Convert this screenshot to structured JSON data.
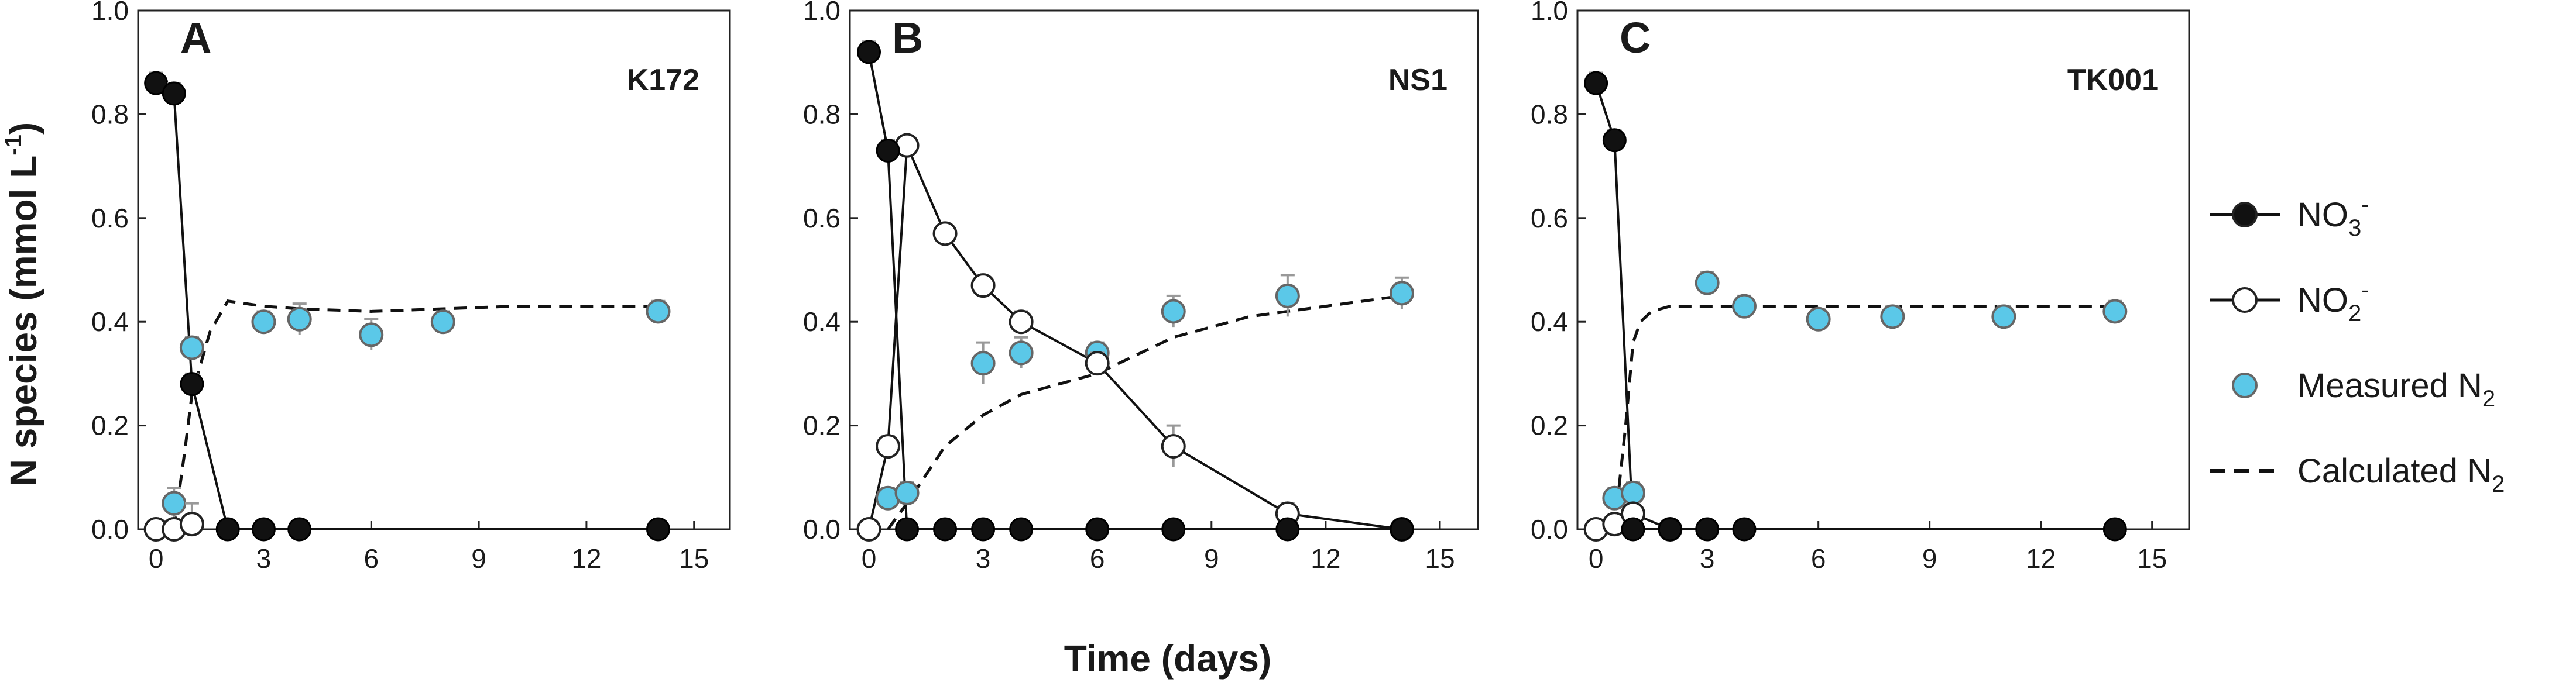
{
  "chart_data": {
    "type": "scatter",
    "y_axis_label": "N species (mmol L",
    "y_axis_label_sup": "-1",
    "y_axis_label_end": ")",
    "x_axis_label": "Time (days)",
    "xlim": [
      -0.5,
      16
    ],
    "ylim": [
      0,
      1.0
    ],
    "x_ticks": [
      0,
      3,
      6,
      9,
      12,
      15
    ],
    "y_ticks": [
      0.0,
      0.2,
      0.4,
      0.6,
      0.8,
      1.0
    ],
    "y_tick_labels": [
      "0.0",
      "0.2",
      "0.4",
      "0.6",
      "0.8",
      "1.0"
    ],
    "legend": {
      "position": "right",
      "items": [
        {
          "key": "no3",
          "label": "NO",
          "sub": "3",
          "sup": "-"
        },
        {
          "key": "no2",
          "label": "NO",
          "sub": "2",
          "sup": "-"
        },
        {
          "key": "measured_n2",
          "label": "Measured N",
          "sub": "2",
          "sup": ""
        },
        {
          "key": "calculated_n2",
          "label": "Calculated N",
          "sub": "2",
          "sup": ""
        }
      ]
    },
    "colors": {
      "no3": "#111111",
      "no2": "#ffffff",
      "measured_n2": "#5bc8e8",
      "errorbar": "#999999",
      "line": "#111111"
    },
    "panels": [
      {
        "letter": "A",
        "name": "K172",
        "no3": {
          "x": [
            0,
            0.5,
            1,
            2,
            3,
            4,
            14
          ],
          "y": [
            0.86,
            0.84,
            0.28,
            0.0,
            0.0,
            0.0,
            0.0
          ],
          "err": [
            0.02,
            0.02,
            0.02,
            0.01,
            0.01,
            0.01,
            0.01
          ]
        },
        "no2": {
          "x": [
            0,
            0.5,
            1
          ],
          "y": [
            0.0,
            0.0,
            0.01
          ],
          "err": [
            0.01,
            0.01,
            0.04
          ]
        },
        "measured_n2": {
          "x": [
            0.5,
            1,
            3,
            4,
            6,
            8,
            14
          ],
          "y": [
            0.05,
            0.35,
            0.4,
            0.405,
            0.375,
            0.4,
            0.42
          ],
          "err": [
            0.03,
            0.02,
            0.02,
            0.03,
            0.03,
            0.02,
            0.02
          ]
        },
        "calculated_n2": {
          "x": [
            0.5,
            0.8,
            1,
            1.5,
            2,
            3,
            4,
            6,
            8,
            10,
            14
          ],
          "y": [
            0.0,
            0.15,
            0.26,
            0.38,
            0.44,
            0.43,
            0.425,
            0.42,
            0.425,
            0.43,
            0.43
          ]
        }
      },
      {
        "letter": "B",
        "name": "NS1",
        "no3": {
          "x": [
            0,
            0.5,
            1,
            2,
            3,
            4,
            6,
            8,
            11,
            14
          ],
          "y": [
            0.92,
            0.73,
            0.0,
            0.0,
            0.0,
            0.0,
            0.0,
            0.0,
            0.0,
            0.0
          ],
          "err": [
            0.02,
            0.02,
            0.01,
            0.01,
            0.01,
            0.01,
            0.01,
            0.01,
            0.01,
            0.01
          ]
        },
        "no2": {
          "x": [
            0,
            0.5,
            1,
            2,
            3,
            4,
            6,
            8,
            11,
            14
          ],
          "y": [
            0.0,
            0.16,
            0.74,
            0.57,
            0.47,
            0.4,
            0.32,
            0.16,
            0.03,
            0.0
          ],
          "err": [
            0.01,
            0.02,
            0.01,
            0.01,
            0.01,
            0.02,
            0.02,
            0.04,
            0.02,
            0.01
          ]
        },
        "measured_n2": {
          "x": [
            0.5,
            1,
            3,
            4,
            6,
            8,
            11,
            14
          ],
          "y": [
            0.06,
            0.07,
            0.32,
            0.34,
            0.34,
            0.42,
            0.45,
            0.455
          ],
          "err": [
            0.02,
            0.02,
            0.04,
            0.03,
            0.02,
            0.03,
            0.04,
            0.03
          ]
        },
        "calculated_n2": {
          "x": [
            0.5,
            1,
            2,
            3,
            4,
            5,
            6,
            8,
            10,
            12,
            14
          ],
          "y": [
            0.0,
            0.05,
            0.16,
            0.22,
            0.26,
            0.28,
            0.3,
            0.37,
            0.41,
            0.43,
            0.45
          ]
        }
      },
      {
        "letter": "C",
        "name": "TK001",
        "no3": {
          "x": [
            0,
            0.5,
            1,
            2,
            3,
            4,
            14
          ],
          "y": [
            0.86,
            0.75,
            0.0,
            0.0,
            0.0,
            0.0,
            0.0
          ],
          "err": [
            0.02,
            0.02,
            0.01,
            0.01,
            0.01,
            0.01,
            0.01
          ]
        },
        "no2": {
          "x": [
            0,
            0.5,
            1,
            2
          ],
          "y": [
            0.0,
            0.01,
            0.03,
            0.0
          ],
          "err": [
            0.01,
            0.01,
            0.02,
            0.01
          ]
        },
        "measured_n2": {
          "x": [
            0.5,
            1,
            3,
            4,
            6,
            8,
            11,
            14
          ],
          "y": [
            0.06,
            0.07,
            0.475,
            0.43,
            0.405,
            0.41,
            0.41,
            0.42
          ],
          "err": [
            0.02,
            0.02,
            0.02,
            0.02,
            0.02,
            0.02,
            0.02,
            0.02
          ]
        },
        "calculated_n2": {
          "x": [
            0.5,
            0.8,
            1,
            1.2,
            1.5,
            2,
            3,
            6,
            9,
            12,
            14
          ],
          "y": [
            0.0,
            0.2,
            0.36,
            0.4,
            0.42,
            0.43,
            0.43,
            0.43,
            0.43,
            0.43,
            0.43
          ]
        }
      }
    ]
  }
}
